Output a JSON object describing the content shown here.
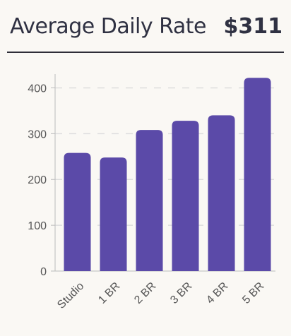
{
  "header": {
    "title": "Average Daily Rate",
    "value": "$311"
  },
  "colors": {
    "bar": "#5b4aa8",
    "grid": "#dddddd",
    "axis": "#bbbbbb",
    "text": "#2f3142"
  },
  "chart_data": {
    "type": "bar",
    "categories": [
      "Studio",
      "1 BR",
      "2 BR",
      "3 BR",
      "4 BR",
      "5 BR"
    ],
    "values": [
      258,
      248,
      308,
      328,
      340,
      422
    ],
    "title": "",
    "xlabel": "",
    "ylabel": "",
    "ylim": [
      0,
      430
    ],
    "yticks": [
      0,
      100,
      200,
      300,
      400
    ],
    "grid": true,
    "grid_style": "dashed"
  }
}
